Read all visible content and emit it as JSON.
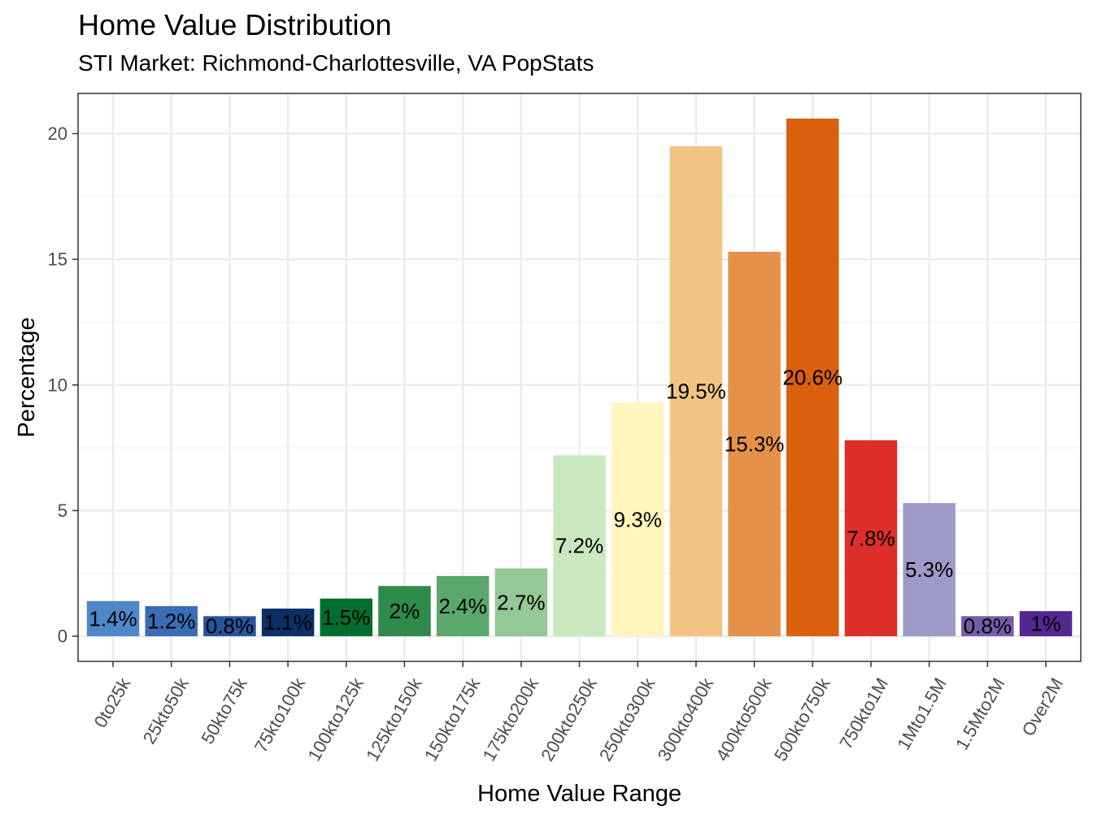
{
  "chart_data": {
    "type": "bar",
    "title": "Home Value Distribution",
    "subtitle": "STI Market: Richmond-Charlottesville, VA PopStats",
    "xlabel": "Home Value Range",
    "ylabel": "Percentage",
    "ylim": [
      -1,
      21.6
    ],
    "yticks": [
      0,
      5,
      10,
      15,
      20
    ],
    "grid": true,
    "legend": "none",
    "categories": [
      "0to25k",
      "25kto50k",
      "50kto75k",
      "75kto100k",
      "100kto125k",
      "125kto150k",
      "150kto175k",
      "175kto200k",
      "200kto250k",
      "250kto300k",
      "300kto400k",
      "400kto500k",
      "500kto750k",
      "750kto1M",
      "1Mto1.5M",
      "1.5Mto2M",
      "Over2M"
    ],
    "values": [
      1.4,
      1.2,
      0.8,
      1.1,
      1.5,
      2.0,
      2.4,
      2.7,
      7.2,
      9.3,
      19.5,
      15.3,
      20.6,
      7.8,
      5.3,
      0.8,
      1.0
    ],
    "labels": [
      "1.4%",
      "1.2%",
      "0.8%",
      "1.1%",
      "1.5%",
      "2%",
      "2.4%",
      "2.7%",
      "7.2%",
      "9.3%",
      "19.5%",
      "15.3%",
      "20.6%",
      "7.8%",
      "5.3%",
      "0.8%",
      "1%"
    ],
    "colors": [
      "#4f87c8",
      "#3a6db3",
      "#27559b",
      "#0b2f66",
      "#006f2e",
      "#2f8a4c",
      "#5aa86c",
      "#94c896",
      "#c9e8c0",
      "#fff6bb",
      "#f1c482",
      "#e4924a",
      "#d8600e",
      "#dc2f2a",
      "#9d9ac7",
      "#735ea8",
      "#54278f"
    ]
  }
}
